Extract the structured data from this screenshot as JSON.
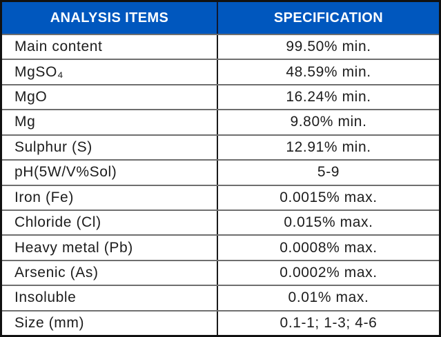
{
  "table": {
    "header": {
      "analysis_items": "ANALYSIS ITEMS",
      "specification": "SPECIFICATION"
    },
    "rows": [
      {
        "item": "Main content",
        "spec": "99.50% min."
      },
      {
        "item": "MgSO₄",
        "spec": "48.59% min."
      },
      {
        "item": "MgO",
        "spec": "16.24% min."
      },
      {
        "item": "Mg",
        "spec": "9.80% min."
      },
      {
        "item": "Sulphur (S)",
        "spec": "12.91% min."
      },
      {
        "item": "pH(5W/V%Sol)",
        "spec": "5-9"
      },
      {
        "item": "Iron (Fe)",
        "spec": "0.0015% max."
      },
      {
        "item": "Chloride (Cl)",
        "spec": "0.015% max."
      },
      {
        "item": "Heavy metal (Pb)",
        "spec": "0.0008% max."
      },
      {
        "item": "Arsenic (As)",
        "spec": "0.0002% max."
      },
      {
        "item": "Insoluble",
        "spec": "0.01% max."
      },
      {
        "item": "Size (mm)",
        "spec": "0.1-1; 1-3; 4-6"
      }
    ],
    "colors": {
      "header_bg": "#0057BE",
      "header_text": "#FFFFFF",
      "outer_border": "#111111",
      "row_divider": "#6E6E6E",
      "column_divider": "#191919",
      "body_text": "#1C1C1C"
    }
  }
}
